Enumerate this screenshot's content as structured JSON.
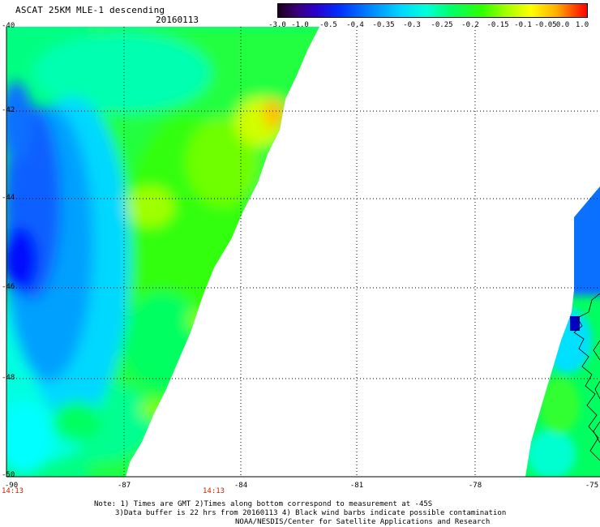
{
  "header": {
    "title": "ASCAT 25KM MLE-1 descending",
    "date": "20160113"
  },
  "colorbar": {
    "labels": [
      "-3.0",
      "-1.0",
      "-0.5",
      "-0.4",
      "-0.35",
      "-0.3",
      "-0.25",
      "-0.2",
      "-0.15",
      "-0.1",
      "-0.05",
      "0.0",
      "1.0"
    ]
  },
  "axes": {
    "lat_labels": [
      "-40",
      "-42",
      "-44",
      "-46",
      "-48",
      "-50"
    ],
    "lon_labels": [
      "-90",
      "-87",
      "-84",
      "-81",
      "-78",
      "-75"
    ]
  },
  "times": {
    "left": "14:13",
    "mid": "14:13"
  },
  "notes": {
    "line1": "Note: 1) Times are GMT 2)Times along bottom correspond to measurement at -45S",
    "line2": "3)Data buffer is 22 hrs from 20160113 4) Black wind barbs indicate possible contamination",
    "line3": "NOAA/NESDIS/Center for Satellite Applications and Research"
  },
  "colors": {
    "deep_blue": "#0000ff",
    "blue": "#0a60ff",
    "cyan": "#00ffff",
    "green": "#00ff40",
    "yellow_green": "#b0ff00",
    "yellow": "#ffff00",
    "orange": "#ff9000",
    "background": "#ffffff"
  }
}
